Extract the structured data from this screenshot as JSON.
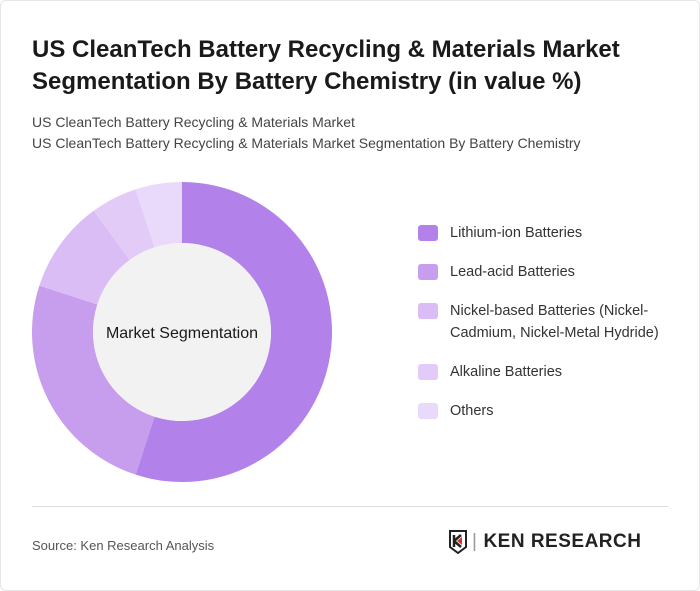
{
  "title": "US CleanTech Battery Recycling & Materials Market Segmentation By Battery Chemistry (in value %)",
  "subtitle_1": "US CleanTech Battery Recycling & Materials Market",
  "subtitle_2": "US CleanTech Battery Recycling & Materials Market Segmentation By Battery Chemistry",
  "source": "Source: Ken Research Analysis",
  "logo_text": "KEN RESEARCH",
  "chart_data": {
    "type": "pie",
    "variant": "donut",
    "center_label": "Market Segmentation",
    "categories": [
      "Lithium-ion Batteries",
      "Lead-acid Batteries",
      "Nickel-based Batteries (Nickel-Cadmium, Nickel-Metal Hydride)",
      "Alkaline Batteries",
      "Others"
    ],
    "values": [
      55,
      25,
      10,
      5,
      5
    ],
    "colors": [
      "#b381ea",
      "#c79ded",
      "#dbbdf5",
      "#e3cbf7",
      "#e9d9fa"
    ],
    "legend_position": "right"
  }
}
